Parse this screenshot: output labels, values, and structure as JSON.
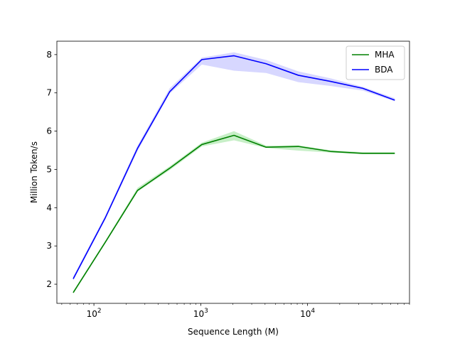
{
  "chart_data": {
    "type": "line",
    "xlabel": "Sequence Length (M)",
    "ylabel": "Million Token/s",
    "xscale": "log",
    "xlim": [
      45,
      90000
    ],
    "ylim": [
      1.5,
      8.35
    ],
    "xticks": [
      {
        "value": 100,
        "base": "10",
        "exp": "2"
      },
      {
        "value": 1000,
        "base": "10",
        "exp": "3"
      },
      {
        "value": 10000,
        "base": "10",
        "exp": "4"
      }
    ],
    "yticks": [
      {
        "value": 2,
        "label": "2"
      },
      {
        "value": 3,
        "label": "3"
      },
      {
        "value": 4,
        "label": "4"
      },
      {
        "value": 5,
        "label": "5"
      },
      {
        "value": 6,
        "label": "6"
      },
      {
        "value": 7,
        "label": "7"
      },
      {
        "value": 8,
        "label": "8"
      }
    ],
    "x": [
      64,
      128,
      256,
      512,
      1024,
      2048,
      4096,
      8192,
      16384,
      32768,
      65536
    ],
    "series": [
      {
        "name": "MHA",
        "color": "#008000",
        "band_color": "#90e090",
        "values": [
          1.78,
          3.1,
          4.45,
          5.03,
          5.65,
          5.89,
          5.58,
          5.6,
          5.47,
          5.42,
          5.42
        ],
        "lower": [
          1.76,
          3.08,
          4.42,
          4.98,
          5.6,
          5.76,
          5.56,
          5.49,
          5.44,
          5.4,
          5.4
        ],
        "upper": [
          1.82,
          3.14,
          4.52,
          5.08,
          5.7,
          6.0,
          5.62,
          5.63,
          5.5,
          5.45,
          5.45
        ]
      },
      {
        "name": "BDA",
        "color": "#0000ff",
        "band_color": "#b0b0ff",
        "values": [
          2.14,
          3.74,
          5.55,
          7.03,
          7.87,
          7.97,
          7.76,
          7.46,
          7.3,
          7.12,
          6.81
        ],
        "lower": [
          2.1,
          3.7,
          5.48,
          6.98,
          7.74,
          7.58,
          7.52,
          7.28,
          7.18,
          7.06,
          6.78
        ],
        "upper": [
          2.2,
          3.8,
          5.62,
          7.12,
          7.92,
          8.06,
          7.86,
          7.56,
          7.38,
          7.16,
          6.86
        ]
      }
    ],
    "legend_position": "top-right"
  }
}
